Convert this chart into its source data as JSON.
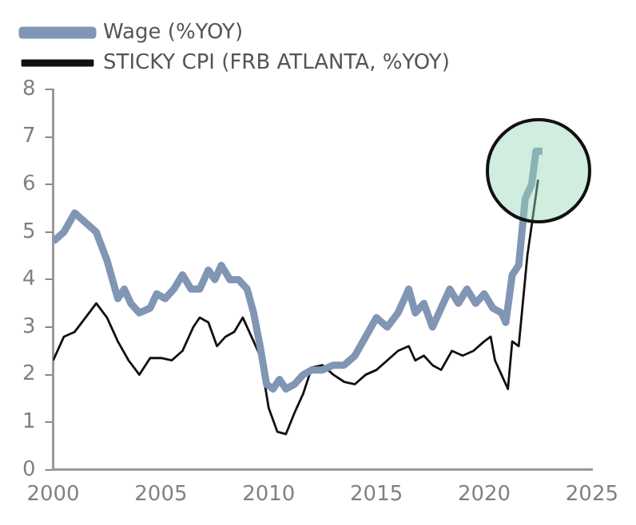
{
  "chart_data": {
    "type": "line",
    "xlim": [
      2000,
      2025
    ],
    "xticks": [
      2000,
      2005,
      2010,
      2015,
      2020,
      2025
    ],
    "ylim": [
      0,
      8
    ],
    "yticks": [
      0,
      1,
      2,
      3,
      4,
      5,
      6,
      7,
      8
    ],
    "grid": false,
    "legend": "top left",
    "marker": "none",
    "line_style": "solid",
    "series": [
      {
        "name": "Wage (%YOY)",
        "color": "#8096b4",
        "x": [
          2000,
          2000.5,
          2001,
          2001.5,
          2002,
          2002.5,
          2003,
          2003.3,
          2003.6,
          2004,
          2004.5,
          2004.8,
          2005.2,
          2005.6,
          2006,
          2006.4,
          2006.8,
          2007.2,
          2007.5,
          2007.8,
          2008.2,
          2008.6,
          2009,
          2009.3,
          2009.6,
          2009.9,
          2010.2,
          2010.5,
          2010.8,
          2011.2,
          2011.6,
          2012,
          2012.5,
          2013,
          2013.5,
          2014,
          2014.5,
          2015,
          2015.5,
          2016,
          2016.5,
          2016.8,
          2017.2,
          2017.6,
          2018,
          2018.4,
          2018.8,
          2019.2,
          2019.6,
          2020,
          2020.4,
          2020.8,
          2021,
          2021.3,
          2021.6,
          2021.9,
          2022.2,
          2022.4,
          2022.7
        ],
        "values": [
          4.8,
          5.0,
          5.4,
          5.2,
          5.0,
          4.4,
          3.6,
          3.8,
          3.5,
          3.3,
          3.4,
          3.7,
          3.6,
          3.8,
          4.1,
          3.8,
          3.8,
          4.2,
          4.0,
          4.3,
          4.0,
          4.0,
          3.8,
          3.3,
          2.6,
          1.8,
          1.7,
          1.9,
          1.7,
          1.8,
          2.0,
          2.1,
          2.1,
          2.2,
          2.2,
          2.4,
          2.8,
          3.2,
          3.0,
          3.3,
          3.8,
          3.3,
          3.5,
          3.0,
          3.4,
          3.8,
          3.5,
          3.8,
          3.5,
          3.7,
          3.4,
          3.3,
          3.1,
          4.1,
          4.3,
          5.7,
          6.0,
          6.7,
          6.7
        ]
      },
      {
        "name": "STICKY CPI (FRB ATLANTA, %YOY)",
        "color": "#111111",
        "x": [
          2000,
          2000.5,
          2001,
          2001.5,
          2002,
          2002.5,
          2003,
          2003.5,
          2004,
          2004.5,
          2005,
          2005.5,
          2006,
          2006.5,
          2006.8,
          2007.2,
          2007.6,
          2008,
          2008.4,
          2008.8,
          2009.2,
          2009.6,
          2010,
          2010.4,
          2010.8,
          2011.2,
          2011.6,
          2012,
          2012.5,
          2013,
          2013.5,
          2014,
          2014.5,
          2015,
          2015.5,
          2016,
          2016.5,
          2016.8,
          2017.2,
          2017.6,
          2018,
          2018.5,
          2019,
          2019.5,
          2020,
          2020.3,
          2020.5,
          2020.8,
          2021.1,
          2021.3,
          2021.6,
          2022,
          2022.5
        ],
        "values": [
          2.3,
          2.8,
          2.9,
          3.2,
          3.5,
          3.2,
          2.7,
          2.3,
          2.0,
          2.35,
          2.35,
          2.3,
          2.5,
          3.0,
          3.2,
          3.1,
          2.6,
          2.8,
          2.9,
          3.2,
          2.8,
          2.4,
          1.3,
          0.8,
          0.75,
          1.2,
          1.6,
          2.15,
          2.2,
          2.0,
          1.85,
          1.8,
          2.0,
          2.1,
          2.3,
          2.5,
          2.6,
          2.3,
          2.4,
          2.2,
          2.1,
          2.5,
          2.4,
          2.5,
          2.7,
          2.8,
          2.3,
          2.0,
          1.7,
          2.7,
          2.6,
          4.5,
          6.1
        ]
      }
    ]
  }
}
